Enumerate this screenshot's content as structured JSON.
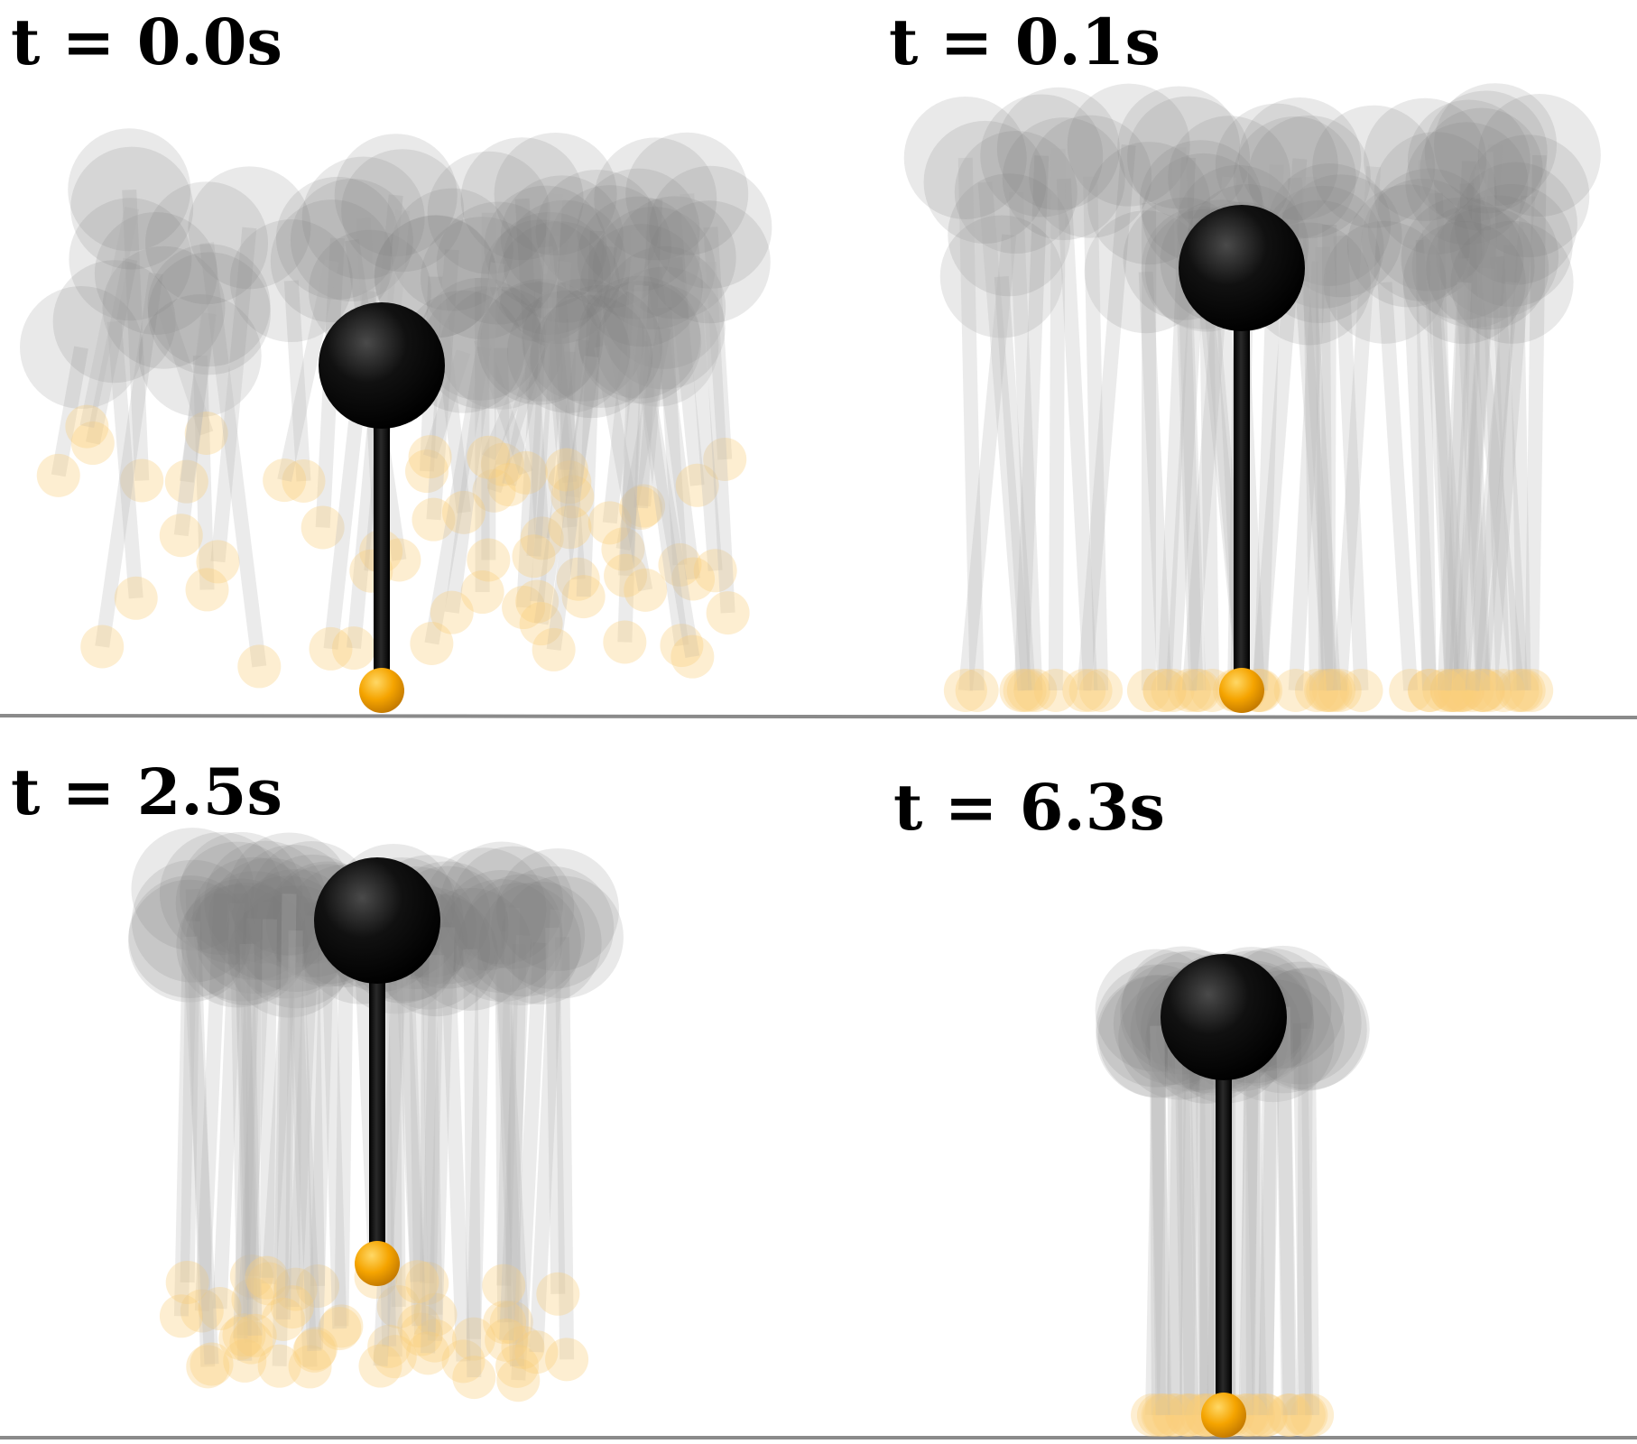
{
  "colors": {
    "background": "#ffffff",
    "ground": "#8a8a8a",
    "pendulum": "#000000",
    "foot": "#f5a400",
    "ghost_body": "#7a7a7a",
    "ghost_leg": "#b8b8b8",
    "ghost_foot": "#f8cf7a"
  },
  "panels": [
    {
      "label": "t = 0.0s",
      "state": "feet scattered in the air"
    },
    {
      "label": "t = 0.1s",
      "state": "feet on the ground"
    },
    {
      "label": "t = 2.5s",
      "state": "feet lifted"
    },
    {
      "label": "t = 6.3s",
      "state": "feet on the ground, converged"
    }
  ]
}
